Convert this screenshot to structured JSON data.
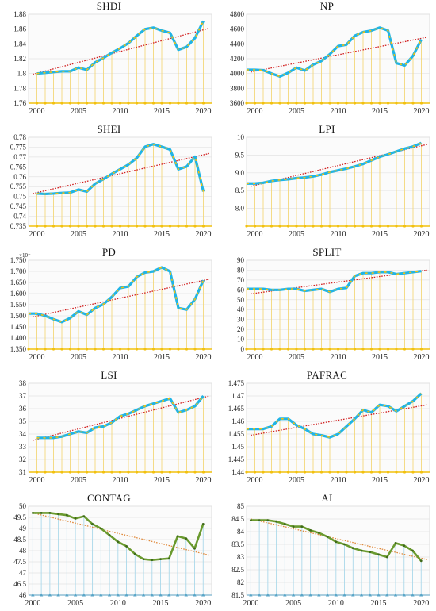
{
  "colors": {
    "trend": "#d12020",
    "trend_light": "#e08a3c",
    "blue_line": "#1fb4e6",
    "dash_overlay": "#f2c10f",
    "stem_yellow": "#f3d77a",
    "baseline_yellow": "#f2c10f",
    "green_line": "#6a9a2e",
    "stem_blue": "#aad8ea",
    "plot_bg": "#fbfbfb"
  },
  "chart_data": [
    {
      "id": "shdi",
      "type": "line",
      "title": "SHDI",
      "style": "blue",
      "xlim": [
        1999,
        2021
      ],
      "ylim": [
        1.76,
        1.88
      ],
      "xticks": [
        2000,
        2005,
        2010,
        2015,
        2020
      ],
      "xticklabels": [
        "2000",
        "2005",
        "2010",
        "2015",
        "2020"
      ],
      "yticks": [
        1.76,
        1.78,
        1.8,
        1.82,
        1.84,
        1.86,
        1.88
      ],
      "yticklabels": [
        "1.76",
        "1.78",
        "1.8",
        "1.82",
        "1.84",
        "1.86",
        "1.88"
      ],
      "x": [
        2000,
        2001,
        2002,
        2003,
        2004,
        2005,
        2006,
        2007,
        2008,
        2009,
        2010,
        2011,
        2012,
        2013,
        2014,
        2015,
        2016,
        2017,
        2018,
        2019,
        2020
      ],
      "series": [
        {
          "values": [
            1.8,
            1.801,
            1.802,
            1.803,
            1.803,
            1.808,
            1.805,
            1.815,
            1.821,
            1.828,
            1.834,
            1.841,
            1.851,
            1.86,
            1.862,
            1.858,
            1.855,
            1.832,
            1.836,
            1.848,
            1.871
          ]
        }
      ],
      "trend": [
        1.799,
        1.861
      ]
    },
    {
      "id": "np",
      "type": "line",
      "title": "NP",
      "style": "blue",
      "xlim": [
        1999,
        2021
      ],
      "ylim": [
        3600,
        4800
      ],
      "xticks": [
        2000,
        2005,
        2010,
        2015,
        2020
      ],
      "xticklabels": [
        "2000",
        "2005",
        "2010",
        "2015",
        "2020"
      ],
      "yticks": [
        3600,
        3800,
        4000,
        4200,
        4400,
        4600,
        4800
      ],
      "yticklabels": [
        "3600",
        "3800",
        "4000",
        "4200",
        "4400",
        "4600",
        "4800"
      ],
      "x": [
        1999,
        2000,
        2001,
        2002,
        2003,
        2004,
        2005,
        2006,
        2007,
        2008,
        2009,
        2010,
        2011,
        2012,
        2013,
        2014,
        2015,
        2016,
        2017,
        2018,
        2019,
        2020
      ],
      "series": [
        {
          "values": [
            4050,
            4050,
            4045,
            4000,
            3960,
            4010,
            4080,
            4040,
            4120,
            4170,
            4260,
            4370,
            4390,
            4510,
            4560,
            4580,
            4620,
            4580,
            4140,
            4110,
            4240,
            4460
          ]
        }
      ],
      "trend": [
        4020,
        4490
      ]
    },
    {
      "id": "shei",
      "type": "line",
      "title": "SHEI",
      "style": "blue",
      "xlim": [
        1999,
        2021
      ],
      "ylim": [
        0.735,
        0.78
      ],
      "xticks": [
        2000,
        2005,
        2010,
        2015,
        2020
      ],
      "xticklabels": [
        "2000",
        "2005",
        "2010",
        "2015",
        "2020"
      ],
      "yticks": [
        0.735,
        0.74,
        0.745,
        0.75,
        0.755,
        0.76,
        0.765,
        0.77,
        0.775,
        0.78
      ],
      "yticklabels": [
        "0.735",
        "0.74",
        "0.745",
        "0.75",
        "0.755",
        "0.76",
        "0.765",
        "0.77",
        "0.775",
        "0.78"
      ],
      "x": [
        2000,
        2001,
        2002,
        2003,
        2004,
        2005,
        2006,
        2007,
        2008,
        2009,
        2010,
        2011,
        2012,
        2013,
        2014,
        2015,
        2016,
        2017,
        2018,
        2019,
        2020
      ],
      "series": [
        {
          "values": [
            0.7515,
            0.7513,
            0.7515,
            0.7518,
            0.752,
            0.7535,
            0.7525,
            0.7565,
            0.7588,
            0.7615,
            0.7638,
            0.7662,
            0.7695,
            0.7752,
            0.7765,
            0.7752,
            0.7738,
            0.7638,
            0.7652,
            0.7702,
            0.7525
          ]
        }
      ],
      "trend": [
        0.7515,
        0.7718
      ]
    },
    {
      "id": "lpi",
      "type": "line",
      "title": "LPI",
      "style": "blue",
      "xlim": [
        1999,
        2021
      ],
      "ylim": [
        7.5,
        10
      ],
      "xticks": [
        2000,
        2005,
        2010,
        2015,
        2020
      ],
      "xticklabels": [
        "2000",
        "2005",
        "2010",
        "2015",
        "2020"
      ],
      "yticks": [
        8,
        8.5,
        9,
        9.5,
        10
      ],
      "yticklabels": [
        "8.0",
        "8.5",
        "9.0",
        "9.5",
        "10"
      ],
      "x": [
        1999,
        2000,
        2001,
        2002,
        2003,
        2004,
        2005,
        2006,
        2007,
        2008,
        2009,
        2010,
        2011,
        2012,
        2013,
        2014,
        2015,
        2016,
        2017,
        2018,
        2019,
        2020
      ],
      "series": [
        {
          "values": [
            8.7,
            8.7,
            8.72,
            8.77,
            8.8,
            8.82,
            8.85,
            8.87,
            8.9,
            8.95,
            9.02,
            9.07,
            9.12,
            9.18,
            9.25,
            9.35,
            9.45,
            9.52,
            9.6,
            9.68,
            9.74,
            9.84
          ]
        }
      ],
      "trend": [
        8.62,
        9.8
      ]
    },
    {
      "id": "pd",
      "type": "line",
      "title": "PD",
      "style": "blue",
      "exponent": "×10⁻",
      "xlim": [
        1999,
        2021
      ],
      "ylim": [
        1.35,
        1.75
      ],
      "xticks": [
        2000,
        2005,
        2010,
        2015,
        2020
      ],
      "xticklabels": [
        "2000",
        "2005",
        "2010",
        "2015",
        "2020"
      ],
      "yticks": [
        1.35,
        1.4,
        1.45,
        1.5,
        1.55,
        1.6,
        1.65,
        1.7,
        1.75
      ],
      "yticklabels": [
        "1.350",
        "1.400",
        "1.450",
        "1.500",
        "1.550",
        "1.600",
        "1.650",
        "1.700",
        "1.750"
      ],
      "x": [
        1999,
        2000,
        2001,
        2002,
        2003,
        2004,
        2005,
        2006,
        2007,
        2008,
        2009,
        2010,
        2011,
        2012,
        2013,
        2014,
        2015,
        2016,
        2017,
        2018,
        2019,
        2020
      ],
      "series": [
        {
          "values": [
            1.51,
            1.51,
            1.5,
            1.485,
            1.472,
            1.49,
            1.52,
            1.505,
            1.535,
            1.552,
            1.585,
            1.625,
            1.632,
            1.675,
            1.695,
            1.7,
            1.718,
            1.7,
            1.535,
            1.528,
            1.575,
            1.66
          ]
        }
      ],
      "trend": [
        1.495,
        1.665
      ]
    },
    {
      "id": "split",
      "type": "line",
      "title": "SPLIT",
      "style": "blue",
      "xlim": [
        1999,
        2021
      ],
      "ylim": [
        0,
        90
      ],
      "xticks": [
        2000,
        2005,
        2010,
        2015,
        2020
      ],
      "xticklabels": [
        "2000",
        "2005",
        "2010",
        "2015",
        "2020"
      ],
      "yticks": [
        0,
        10,
        20,
        30,
        40,
        50,
        60,
        70,
        80,
        90
      ],
      "yticklabels": [
        "0",
        "10",
        "20",
        "30",
        "40",
        "50",
        "60",
        "70",
        "80",
        "90"
      ],
      "x": [
        1999,
        2000,
        2001,
        2002,
        2003,
        2004,
        2005,
        2006,
        2007,
        2008,
        2009,
        2010,
        2011,
        2012,
        2013,
        2014,
        2015,
        2016,
        2017,
        2018,
        2019,
        2020
      ],
      "series": [
        {
          "values": [
            61,
            61,
            61,
            60,
            60,
            61,
            61,
            59,
            60,
            61,
            58,
            61,
            62,
            74,
            77,
            77,
            78,
            78,
            76,
            77,
            78,
            79
          ]
        }
      ],
      "trend": [
        56,
        80
      ]
    },
    {
      "id": "lsi",
      "type": "line",
      "title": "LSI",
      "style": "blue",
      "xlim": [
        1999,
        2021
      ],
      "ylim": [
        31,
        38
      ],
      "xticks": [
        2000,
        2005,
        2010,
        2015,
        2020
      ],
      "xticklabels": [
        "2000",
        "2005",
        "2010",
        "2015",
        "2020"
      ],
      "yticks": [
        31,
        32,
        33,
        34,
        35,
        36,
        37,
        38
      ],
      "yticklabels": [
        "31",
        "32",
        "33",
        "34",
        "35",
        "36",
        "37",
        "38"
      ],
      "x": [
        2000,
        2001,
        2002,
        2003,
        2004,
        2005,
        2006,
        2007,
        2008,
        2009,
        2010,
        2011,
        2012,
        2013,
        2014,
        2015,
        2016,
        2017,
        2018,
        2019,
        2020
      ],
      "series": [
        {
          "values": [
            33.7,
            33.7,
            33.7,
            33.8,
            34.0,
            34.2,
            34.1,
            34.5,
            34.6,
            34.9,
            35.4,
            35.6,
            35.9,
            36.2,
            36.4,
            36.6,
            36.8,
            35.7,
            35.9,
            36.2,
            37.0
          ]
        }
      ],
      "trend": [
        33.5,
        37.0
      ]
    },
    {
      "id": "pafrac",
      "type": "line",
      "title": "PAFRAC",
      "style": "blue",
      "xlim": [
        1999,
        2021
      ],
      "ylim": [
        1.44,
        1.475
      ],
      "xticks": [
        2000,
        2005,
        2010,
        2015,
        2020
      ],
      "xticklabels": [
        "2000",
        "2005",
        "2010",
        "2015",
        "2020"
      ],
      "yticks": [
        1.44,
        1.445,
        1.45,
        1.455,
        1.46,
        1.465,
        1.47,
        1.475
      ],
      "yticklabels": [
        "1.44",
        "1.445",
        "1.45",
        "1.455",
        "1.46",
        "1.465",
        "1.47",
        "1.475"
      ],
      "x": [
        1999,
        2000,
        2001,
        2002,
        2003,
        2004,
        2005,
        2006,
        2007,
        2008,
        2009,
        2010,
        2011,
        2012,
        2013,
        2014,
        2015,
        2016,
        2017,
        2018,
        2019,
        2020
      ],
      "series": [
        {
          "values": [
            1.457,
            1.457,
            1.457,
            1.458,
            1.461,
            1.461,
            1.4585,
            1.457,
            1.455,
            1.4545,
            1.4537,
            1.455,
            1.458,
            1.461,
            1.4645,
            1.4635,
            1.4665,
            1.466,
            1.464,
            1.466,
            1.468,
            1.471
          ]
        }
      ],
      "trend": [
        1.4545,
        1.4665
      ]
    },
    {
      "id": "contag",
      "type": "line",
      "title": "CONTAG",
      "style": "green",
      "xlim": [
        1999.5,
        2021
      ],
      "ylim": [
        46,
        50
      ],
      "xticks": [
        2000,
        2005,
        2010,
        2015,
        2020
      ],
      "xticklabels": [
        "2000",
        "2005",
        "2010",
        "2015",
        "2020"
      ],
      "yticks": [
        46,
        46.5,
        47,
        47.5,
        48,
        48.5,
        49,
        49.5,
        50
      ],
      "yticklabels": [
        "46",
        "46.5",
        "47",
        "47.5",
        "48",
        "48.5",
        "49",
        "49.5",
        "50"
      ],
      "x": [
        2000,
        2001,
        2002,
        2003,
        2004,
        2005,
        2006,
        2007,
        2008,
        2009,
        2010,
        2011,
        2012,
        2013,
        2014,
        2015,
        2016,
        2017,
        2018,
        2019,
        2020
      ],
      "series": [
        {
          "values": [
            49.7,
            49.7,
            49.7,
            49.65,
            49.6,
            49.45,
            49.55,
            49.2,
            49.0,
            48.7,
            48.4,
            48.2,
            47.85,
            47.62,
            47.58,
            47.62,
            47.65,
            48.65,
            48.55,
            48.1,
            49.2
          ]
        }
      ],
      "trend": [
        49.7,
        47.8
      ]
    },
    {
      "id": "ai",
      "type": "line",
      "title": "AI",
      "style": "green",
      "xlim": [
        1999.5,
        2021
      ],
      "ylim": [
        81.5,
        85
      ],
      "xticks": [
        2000,
        2005,
        2010,
        2015,
        2020
      ],
      "xticklabels": [
        "2000",
        "2005",
        "2010",
        "2015",
        "2020"
      ],
      "yticks": [
        81.5,
        82,
        82.5,
        83,
        83.5,
        84,
        84.5,
        85
      ],
      "yticklabels": [
        "81.5",
        "82",
        "82.5",
        "83",
        "83.5",
        "84",
        "84.5",
        "85"
      ],
      "x": [
        2000,
        2001,
        2002,
        2003,
        2004,
        2005,
        2006,
        2007,
        2008,
        2009,
        2010,
        2011,
        2012,
        2013,
        2014,
        2015,
        2016,
        2017,
        2018,
        2019,
        2020
      ],
      "series": [
        {
          "values": [
            84.45,
            84.45,
            84.45,
            84.4,
            84.3,
            84.2,
            84.2,
            84.05,
            83.95,
            83.8,
            83.6,
            83.5,
            83.35,
            83.25,
            83.2,
            83.1,
            83.0,
            83.55,
            83.45,
            83.25,
            82.85
          ]
        }
      ],
      "trend": [
        84.5,
        82.9
      ]
    }
  ]
}
